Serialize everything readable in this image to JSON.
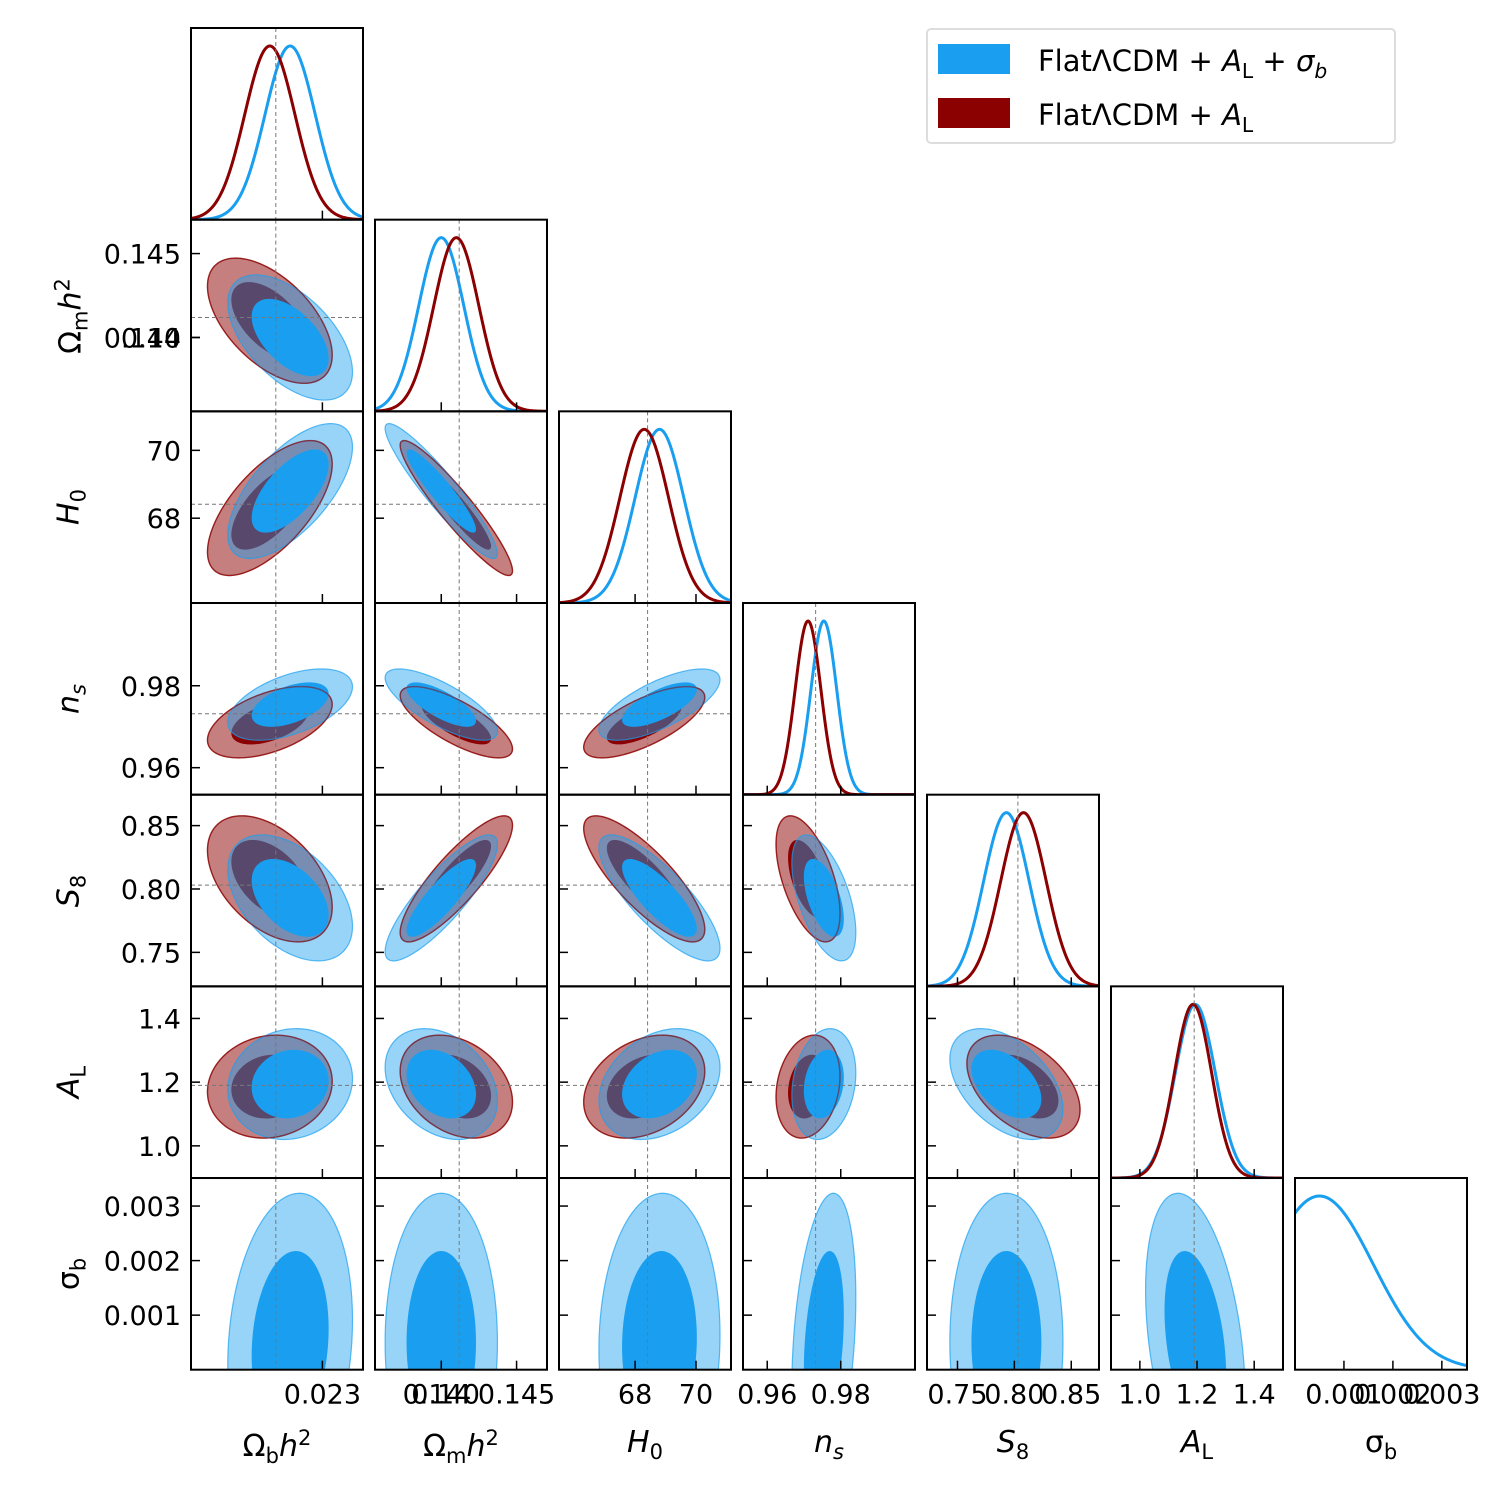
{
  "chart_data": {
    "type": "corner",
    "params": [
      {
        "label": "Ω<sub>b</sub><i>h</i><sup>2</sup>",
        "lim": [
          0.0219,
          0.02334
        ],
        "ticks": [
          0.023
        ],
        "fiducial": 0.02261
      },
      {
        "label": "Ω<sub>m</sub><i>h</i><sup>2</sup>",
        "lim": [
          0.1356,
          0.14702
        ],
        "ticks": [
          0.14,
          {
            "value": 0.14,
            "label": "0.140"
          },
          0.145
        ],
        "fiducial": 0.14119
      },
      {
        "label": "<i>H</i><sub>0</sub>",
        "lim": [
          65.5,
          71.15
        ],
        "ticks": [
          68,
          70
        ],
        "fiducial": 68.41
      },
      {
        "label": "<i>n<sub>s</sub></i>",
        "lim": [
          0.95341,
          1.0002
        ],
        "ticks": [
          0.96,
          0.98
        ],
        "fiducial": 0.97317
      },
      {
        "label": "<i>S</i><sub>8</sub>",
        "lim": [
          0.7232,
          0.8744
        ],
        "ticks": [
          0.75,
          {
            "value": 0.8,
            "label": "0.80"
          },
          0.85
        ],
        "fiducial": 0.8031
      },
      {
        "label": "<i>A</i><sub>L</sub>",
        "lim": [
          0.899,
          1.5008
        ],
        "ticks": [
          {
            "value": 1.0,
            "label": "1.0"
          },
          1.2,
          1.4
        ],
        "fiducial": 1.19
      },
      {
        "label": "σ<sub>b</sub>",
        "lim": [
          0,
          0.003514
        ],
        "ticks": [
          0.001,
          0.002,
          0.003
        ]
      }
    ],
    "series": [
      {
        "name": "FlatΛCDM + <i>A</i><sub>L</sub> + <i>σ<sub>b</sub></i>",
        "color": "#1a9ff0",
        "mean": [
          0.02273,
          0.14,
          68.8,
          0.9754,
          0.793,
          1.194,
          0.0005
        ],
        "sigma": [
          0.00021,
          0.0015,
          0.8,
          0.0035,
          0.02,
          0.07,
          0.0011
        ]
      },
      {
        "name": "FlatΛCDM + <i>A</i><sub>L</sub>",
        "color": "#8b0000",
        "mean": [
          0.02256,
          0.141,
          68.3,
          0.9711,
          0.808,
          1.186,
          null
        ],
        "sigma": [
          0.00021,
          0.0015,
          0.8,
          0.0035,
          0.02,
          0.065,
          null
        ]
      }
    ],
    "correlation": [
      [
        1,
        -0.55,
        0.65,
        0.5,
        -0.45,
        0.1,
        0.15
      ],
      [
        -0.55,
        1,
        -0.93,
        -0.75,
        0.85,
        -0.3,
        0
      ],
      [
        0.65,
        -0.93,
        1,
        0.7,
        -0.8,
        0.3,
        0.05
      ],
      [
        0.5,
        -0.75,
        0.7,
        1,
        -0.55,
        0.2,
        0.3
      ],
      [
        -0.45,
        0.85,
        -0.8,
        -0.55,
        1,
        -0.45,
        0
      ],
      [
        0.1,
        -0.3,
        0.3,
        0.2,
        -0.45,
        1,
        -0.35
      ],
      [
        0.15,
        0,
        0.05,
        0.3,
        0,
        -0.35,
        1
      ]
    ],
    "legend": "upper right"
  }
}
